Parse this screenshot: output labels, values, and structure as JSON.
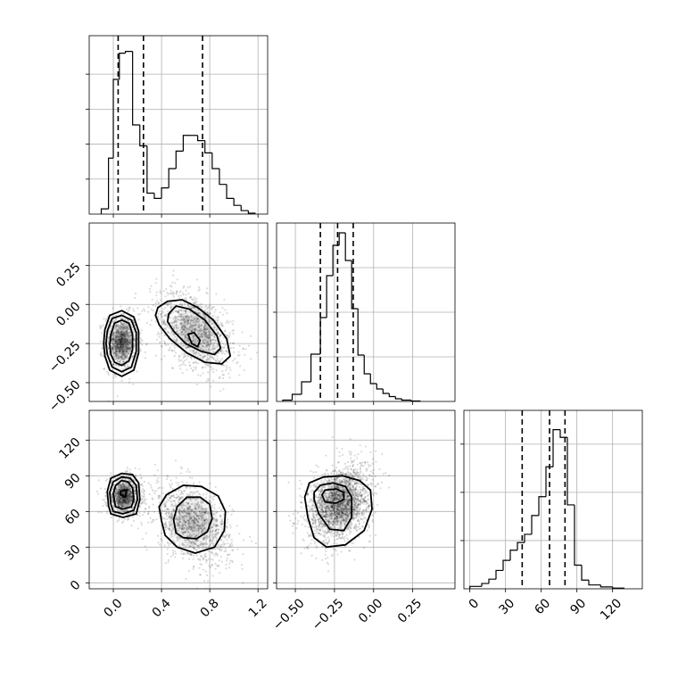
{
  "chart_data": {
    "type": "corner",
    "title": "",
    "parameters": [
      {
        "xlim": [
          -0.2,
          1.28
        ],
        "ticks": [
          0.0,
          0.4,
          0.8,
          1.2
        ],
        "tick_labels": [
          "0.0",
          "0.4",
          "0.8",
          "1.2"
        ],
        "hist": {
          "bin_edges": [
            -0.1,
            -0.04,
            0.0,
            0.05,
            0.1,
            0.16,
            0.22,
            0.28,
            0.34,
            0.4,
            0.46,
            0.52,
            0.58,
            0.64,
            0.7,
            0.76,
            0.82,
            0.88,
            0.94,
            1.0,
            1.06,
            1.12,
            1.18
          ],
          "counts": [
            0.3,
            3.2,
            7.7,
            9.2,
            9.3,
            5.1,
            3.9,
            1.2,
            0.9,
            1.5,
            2.6,
            3.6,
            4.5,
            4.5,
            4.2,
            3.5,
            2.6,
            1.7,
            0.9,
            0.5,
            0.2,
            0.05
          ]
        },
        "hist_ylim": [
          0,
          10.2
        ],
        "hist_yticks": [
          2,
          4,
          6,
          8
        ],
        "quantiles": [
          0.04,
          0.25,
          0.74
        ]
      },
      {
        "xlim": [
          -0.62,
          0.52
        ],
        "ticks": [
          -0.5,
          -0.25,
          0.0,
          0.25
        ],
        "tick_labels": [
          "−0.50",
          "−0.25",
          "0.00",
          "0.25"
        ],
        "hist": {
          "bin_edges": [
            -0.58,
            -0.52,
            -0.46,
            -0.4,
            -0.34,
            -0.3,
            -0.26,
            -0.22,
            -0.18,
            -0.14,
            -0.1,
            -0.06,
            -0.02,
            0.02,
            0.06,
            0.1,
            0.14,
            0.18,
            0.24,
            0.3
          ],
          "counts": [
            0.15,
            0.8,
            2.2,
            5.3,
            9.4,
            14.1,
            17.5,
            18.9,
            15.8,
            10.4,
            5.2,
            3.1,
            2.0,
            1.4,
            0.9,
            0.55,
            0.3,
            0.15,
            0.05
          ]
        },
        "hist_ylim": [
          0,
          20
        ],
        "hist_yticks": [
          5,
          10,
          15
        ],
        "quantiles": [
          -0.34,
          -0.23,
          -0.13
        ]
      },
      {
        "xlim": [
          -5,
          145
        ],
        "ticks": [
          0,
          30,
          60,
          90,
          120
        ],
        "tick_labels": [
          "0",
          "30",
          "60",
          "90",
          "120"
        ],
        "hist": {
          "bin_edges": [
            0,
            10,
            16,
            22,
            28,
            34,
            40,
            46,
            52,
            58,
            64,
            70,
            76,
            82,
            88,
            94,
            100,
            110,
            120,
            130
          ],
          "counts": [
            0.5,
            1.1,
            2.0,
            3.8,
            5.9,
            8.0,
            9.6,
            11.3,
            15.2,
            19.1,
            25.3,
            33.0,
            31.4,
            17.4,
            4.9,
            1.8,
            0.8,
            0.4,
            0.15
          ]
        },
        "hist_ylim": [
          0,
          37
        ],
        "hist_yticks": [
          10,
          20,
          30
        ],
        "quantiles": [
          44,
          67,
          80
        ]
      }
    ],
    "row_ylim": [
      null,
      [
        -0.62,
        0.52
      ],
      [
        -5,
        145
      ]
    ],
    "row_ytick_labels": [
      [],
      [
        "−0.50",
        "−0.25",
        "0.00",
        "0.25"
      ],
      [
        "0",
        "30",
        "60",
        "90",
        "120"
      ]
    ],
    "row_yticks": [
      [],
      [
        -0.5,
        -0.25,
        0.0,
        0.25
      ],
      [
        0,
        30,
        60,
        90,
        120
      ]
    ],
    "scatter_panels": [
      {
        "row": 1,
        "col": 0,
        "clusters": [
          {
            "mx": 0.07,
            "my": -0.24,
            "sx": 0.07,
            "sy": 0.09,
            "n": 900,
            "rho": 0
          },
          {
            "mx": 0.68,
            "my": -0.17,
            "sx": 0.16,
            "sy": 0.13,
            "n": 1200,
            "rho": -0.45
          }
        ],
        "contours": [
          [
            [
              -0.02,
              -0.32
            ],
            [
              0.01,
              -0.37
            ],
            [
              0.07,
              -0.39
            ],
            [
              0.13,
              -0.36
            ],
            [
              0.16,
              -0.29
            ],
            [
              0.16,
              -0.19
            ],
            [
              0.13,
              -0.12
            ],
            [
              0.07,
              -0.1
            ],
            [
              0.01,
              -0.12
            ],
            [
              -0.02,
              -0.19
            ],
            [
              -0.03,
              -0.26
            ]
          ],
          [
            [
              -0.05,
              -0.32
            ],
            [
              -0.01,
              -0.4
            ],
            [
              0.07,
              -0.43
            ],
            [
              0.15,
              -0.4
            ],
            [
              0.19,
              -0.3
            ],
            [
              0.19,
              -0.18
            ],
            [
              0.15,
              -0.1
            ],
            [
              0.07,
              -0.07
            ],
            [
              -0.01,
              -0.09
            ],
            [
              -0.05,
              -0.17
            ],
            [
              -0.06,
              -0.25
            ]
          ],
          [
            [
              -0.07,
              -0.33
            ],
            [
              -0.03,
              -0.42
            ],
            [
              0.07,
              -0.46
            ],
            [
              0.17,
              -0.42
            ],
            [
              0.21,
              -0.31
            ],
            [
              0.21,
              -0.17
            ],
            [
              0.17,
              -0.08
            ],
            [
              0.07,
              -0.04
            ],
            [
              -0.03,
              -0.07
            ],
            [
              -0.07,
              -0.16
            ],
            [
              -0.08,
              -0.25
            ]
          ],
          [
            [
              0.62,
              -0.19
            ],
            [
              0.67,
              -0.18
            ],
            [
              0.72,
              -0.23
            ],
            [
              0.7,
              -0.27
            ],
            [
              0.65,
              -0.25
            ]
          ],
          [
            [
              0.46,
              -0.06
            ],
            [
              0.52,
              -0.01
            ],
            [
              0.63,
              -0.03
            ],
            [
              0.76,
              -0.1
            ],
            [
              0.86,
              -0.2
            ],
            [
              0.89,
              -0.28
            ],
            [
              0.84,
              -0.32
            ],
            [
              0.73,
              -0.3
            ],
            [
              0.6,
              -0.25
            ],
            [
              0.5,
              -0.17
            ],
            [
              0.45,
              -0.11
            ]
          ],
          [
            [
              0.37,
              -0.02
            ],
            [
              0.45,
              0.02
            ],
            [
              0.57,
              0.03
            ],
            [
              0.7,
              -0.02
            ],
            [
              0.83,
              -0.1
            ],
            [
              0.94,
              -0.22
            ],
            [
              0.97,
              -0.33
            ],
            [
              0.9,
              -0.38
            ],
            [
              0.76,
              -0.37
            ],
            [
              0.61,
              -0.31
            ],
            [
              0.47,
              -0.22
            ],
            [
              0.38,
              -0.13
            ],
            [
              0.35,
              -0.07
            ]
          ]
        ]
      },
      {
        "row": 2,
        "col": 0,
        "clusters": [
          {
            "mx": 0.09,
            "my": 73,
            "sx": 0.07,
            "sy": 8,
            "n": 900,
            "rho": 0
          },
          {
            "mx": 0.66,
            "my": 50,
            "sx": 0.16,
            "sy": 17,
            "n": 1200,
            "rho": -0.4
          }
        ],
        "contours": [
          [
            [
              0.06,
              77
            ],
            [
              0.11,
              78
            ],
            [
              0.1,
              72
            ],
            [
              0.06,
              74
            ]
          ],
          [
            [
              0.01,
              68
            ],
            [
              0.02,
              64
            ],
            [
              0.08,
              62
            ],
            [
              0.15,
              64
            ],
            [
              0.17,
              70
            ],
            [
              0.16,
              80
            ],
            [
              0.12,
              85
            ],
            [
              0.07,
              86
            ],
            [
              0.02,
              82
            ],
            [
              0.0,
              75
            ]
          ],
          [
            [
              -0.02,
              66
            ],
            [
              0.0,
              60
            ],
            [
              0.08,
              58
            ],
            [
              0.17,
              61
            ],
            [
              0.2,
              70
            ],
            [
              0.19,
              82
            ],
            [
              0.14,
              88
            ],
            [
              0.07,
              89
            ],
            [
              0.0,
              85
            ],
            [
              -0.03,
              76
            ]
          ],
          [
            [
              -0.04,
              65
            ],
            [
              -0.02,
              58
            ],
            [
              0.08,
              55
            ],
            [
              0.19,
              58
            ],
            [
              0.22,
              70
            ],
            [
              0.21,
              84
            ],
            [
              0.16,
              91
            ],
            [
              0.07,
              92
            ],
            [
              -0.02,
              88
            ],
            [
              -0.05,
              77
            ]
          ],
          [
            [
              0.52,
              42
            ],
            [
              0.58,
              38
            ],
            [
              0.69,
              37
            ],
            [
              0.78,
              43
            ],
            [
              0.82,
              54
            ],
            [
              0.8,
              66
            ],
            [
              0.72,
              72
            ],
            [
              0.61,
              72
            ],
            [
              0.53,
              64
            ],
            [
              0.5,
              53
            ]
          ],
          [
            [
              0.4,
              52
            ],
            [
              0.43,
              40
            ],
            [
              0.53,
              30
            ],
            [
              0.68,
              25
            ],
            [
              0.84,
              30
            ],
            [
              0.92,
              44
            ],
            [
              0.93,
              60
            ],
            [
              0.87,
              73
            ],
            [
              0.73,
              81
            ],
            [
              0.58,
              82
            ],
            [
              0.44,
              74
            ],
            [
              0.38,
              64
            ]
          ]
        ]
      },
      {
        "row": 2,
        "col": 1,
        "clusters": [
          {
            "mx": -0.22,
            "my": 67,
            "sx": 0.1,
            "sy": 16,
            "n": 2100,
            "rho": 0.3
          }
        ],
        "contours": [
          [
            [
              -0.33,
              74
            ],
            [
              -0.31,
              68
            ],
            [
              -0.24,
              67
            ],
            [
              -0.19,
              70
            ],
            [
              -0.19,
              76
            ],
            [
              -0.24,
              79
            ],
            [
              -0.31,
              78
            ]
          ],
          [
            [
              -0.38,
              70
            ],
            [
              -0.35,
              58
            ],
            [
              -0.28,
              45
            ],
            [
              -0.19,
              44
            ],
            [
              -0.14,
              55
            ],
            [
              -0.14,
              72
            ],
            [
              -0.18,
              81
            ],
            [
              -0.26,
              84
            ],
            [
              -0.34,
              82
            ],
            [
              -0.38,
              76
            ]
          ],
          [
            [
              -0.44,
              72
            ],
            [
              -0.42,
              55
            ],
            [
              -0.38,
              38
            ],
            [
              -0.3,
              30
            ],
            [
              -0.18,
              32
            ],
            [
              -0.06,
              44
            ],
            [
              -0.01,
              62
            ],
            [
              -0.02,
              78
            ],
            [
              -0.09,
              86
            ],
            [
              -0.2,
              90
            ],
            [
              -0.32,
              89
            ],
            [
              -0.41,
              84
            ]
          ]
        ]
      }
    ]
  }
}
